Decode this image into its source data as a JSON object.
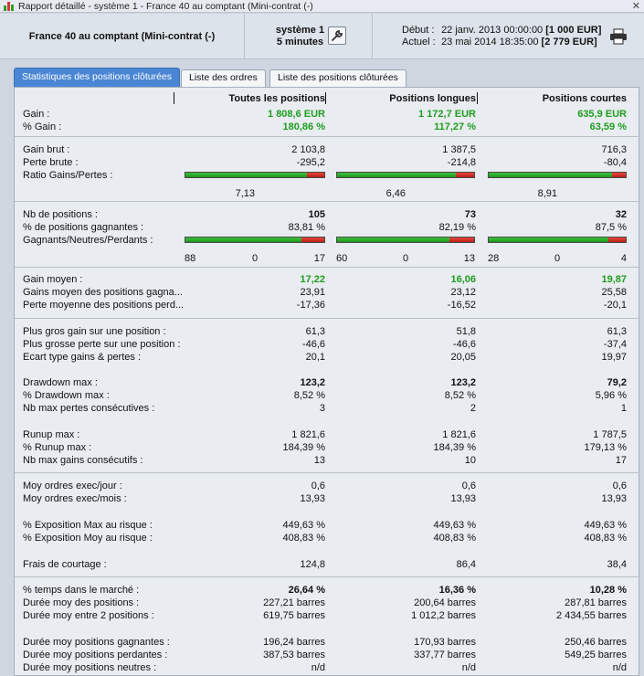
{
  "window": {
    "title": "Rapport détaillé - système 1 - France 40 au comptant (Mini-contrat (-)",
    "close_label": "✕"
  },
  "header": {
    "instrument": "France 40 au comptant (Mini-contrat  (-)",
    "system": "système 1",
    "period": "5 minutes",
    "start_label": "Début :",
    "start_value": "22 janv. 2013 00:00:00",
    "start_amount": "[1 000 EUR]",
    "current_label": "Actuel :",
    "current_value": "23 mai 2014 18:35:00",
    "current_amount": "[2 779 EUR]"
  },
  "tabs": [
    "Statistiques des positions clôturées",
    "Liste des ordres",
    "Liste des positions clôturées"
  ],
  "columns": [
    "Toutes les positions",
    "Positions longues",
    "Positions courtes"
  ],
  "rows": {
    "gain": {
      "label": "Gain :",
      "v": [
        "1 808,6 EUR",
        "1 172,7 EUR",
        "635,9 EUR"
      ]
    },
    "pct_gain": {
      "label": "% Gain :",
      "v": [
        "180,86 %",
        "117,27 %",
        "63,59 %"
      ]
    },
    "gain_brut": {
      "label": "Gain brut :",
      "v": [
        "2 103,8",
        "1 387,5",
        "716,3"
      ]
    },
    "perte_brute": {
      "label": "Perte brute :",
      "v": [
        "-295,2",
        "-214,8",
        "-80,4"
      ]
    },
    "ratio": {
      "label": "Ratio Gains/Pertes :",
      "v": [
        "7,13",
        "6,46",
        "8,91"
      ],
      "fraction": [
        0.877,
        0.866,
        0.899
      ]
    },
    "nb_pos": {
      "label": "Nb de positions :",
      "v": [
        "105",
        "73",
        "32"
      ]
    },
    "pct_gagnantes": {
      "label": "% de positions gagnantes :",
      "v": [
        "83,81 %",
        "82,19 %",
        "87,5 %"
      ]
    },
    "gnp": {
      "label": "Gagnants/Neutres/Perdants :",
      "fraction": [
        0.838,
        0.822,
        0.875
      ],
      "c1": [
        "88",
        "0",
        "17"
      ],
      "c2": [
        "60",
        "0",
        "13"
      ],
      "c3": [
        "28",
        "0",
        "4"
      ]
    },
    "gain_moyen": {
      "label": "Gain moyen :",
      "v": [
        "17,22",
        "16,06",
        "19,87"
      ]
    },
    "gains_moyen_gagn": {
      "label": "Gains moyen des positions gagna...",
      "v": [
        "23,91",
        "23,12",
        "25,58"
      ]
    },
    "perte_moyenne": {
      "label": "Perte moyenne des positions perd...",
      "v": [
        "-17,36",
        "-16,52",
        "-20,1"
      ]
    },
    "plus_gros_gain": {
      "label": "Plus gros gain sur une position :",
      "v": [
        "61,3",
        "51,8",
        "61,3"
      ]
    },
    "plus_grosse_perte": {
      "label": "Plus grosse perte sur une position :",
      "v": [
        "-46,6",
        "-46,6",
        "-37,4"
      ]
    },
    "ecart_type": {
      "label": "Ecart type gains & pertes :",
      "v": [
        "20,1",
        "20,05",
        "19,97"
      ]
    },
    "drawdown": {
      "label": "Drawdown max :",
      "v": [
        "123,2",
        "123,2",
        "79,2"
      ]
    },
    "pct_drawdown": {
      "label": "% Drawdown max :",
      "v": [
        "8,52 %",
        "8,52 %",
        "5,96 %"
      ]
    },
    "nb_pertes": {
      "label": "Nb max pertes consécutives :",
      "v": [
        "3",
        "2",
        "1"
      ]
    },
    "runup": {
      "label": "Runup max :",
      "v": [
        "1 821,6",
        "1 821,6",
        "1 787,5"
      ]
    },
    "pct_runup": {
      "label": "% Runup max :",
      "v": [
        "184,39 %",
        "184,39 %",
        "179,13 %"
      ]
    },
    "nb_gains": {
      "label": "Nb max gains consécutifs :",
      "v": [
        "13",
        "10",
        "17"
      ]
    },
    "moy_jour": {
      "label": "Moy ordres exec/jour :",
      "v": [
        "0,6",
        "0,6",
        "0,6"
      ]
    },
    "moy_mois": {
      "label": "Moy ordres exec/mois :",
      "v": [
        "13,93",
        "13,93",
        "13,93"
      ]
    },
    "expo_max": {
      "label": "% Exposition Max au risque :",
      "v": [
        "449,63 %",
        "449,63 %",
        "449,63 %"
      ]
    },
    "expo_moy": {
      "label": "% Exposition Moy au risque :",
      "v": [
        "408,83 %",
        "408,83 %",
        "408,83 %"
      ]
    },
    "frais": {
      "label": "Frais de courtage :",
      "v": [
        "124,8",
        "86,4",
        "38,4"
      ]
    },
    "temps_marche": {
      "label": "% temps dans le marché :",
      "v": [
        "26,64 %",
        "16,36 %",
        "10,28 %"
      ]
    },
    "duree_pos": {
      "label": "Durée moy des positions :",
      "v": [
        "227,21 barres",
        "200,64 barres",
        "287,81 barres"
      ]
    },
    "duree_entre": {
      "label": "Durée moy entre 2 positions :",
      "v": [
        "619,75 barres",
        "1 012,2 barres",
        "2 434,55 barres"
      ]
    },
    "duree_gagn": {
      "label": "Durée moy positions gagnantes :",
      "v": [
        "196,24 barres",
        "170,93 barres",
        "250,46 barres"
      ]
    },
    "duree_perd": {
      "label": "Durée moy positions perdantes :",
      "v": [
        "387,53 barres",
        "337,77 barres",
        "549,25 barres"
      ]
    },
    "duree_neutres": {
      "label": "Durée moy positions neutres :",
      "v": [
        "n/d",
        "n/d",
        "n/d"
      ]
    }
  },
  "colors": {
    "green": "#1e9e1e",
    "bar_green": "#2fae2f",
    "bar_red": "#d2332b",
    "tab_active": "#4a86d4"
  }
}
